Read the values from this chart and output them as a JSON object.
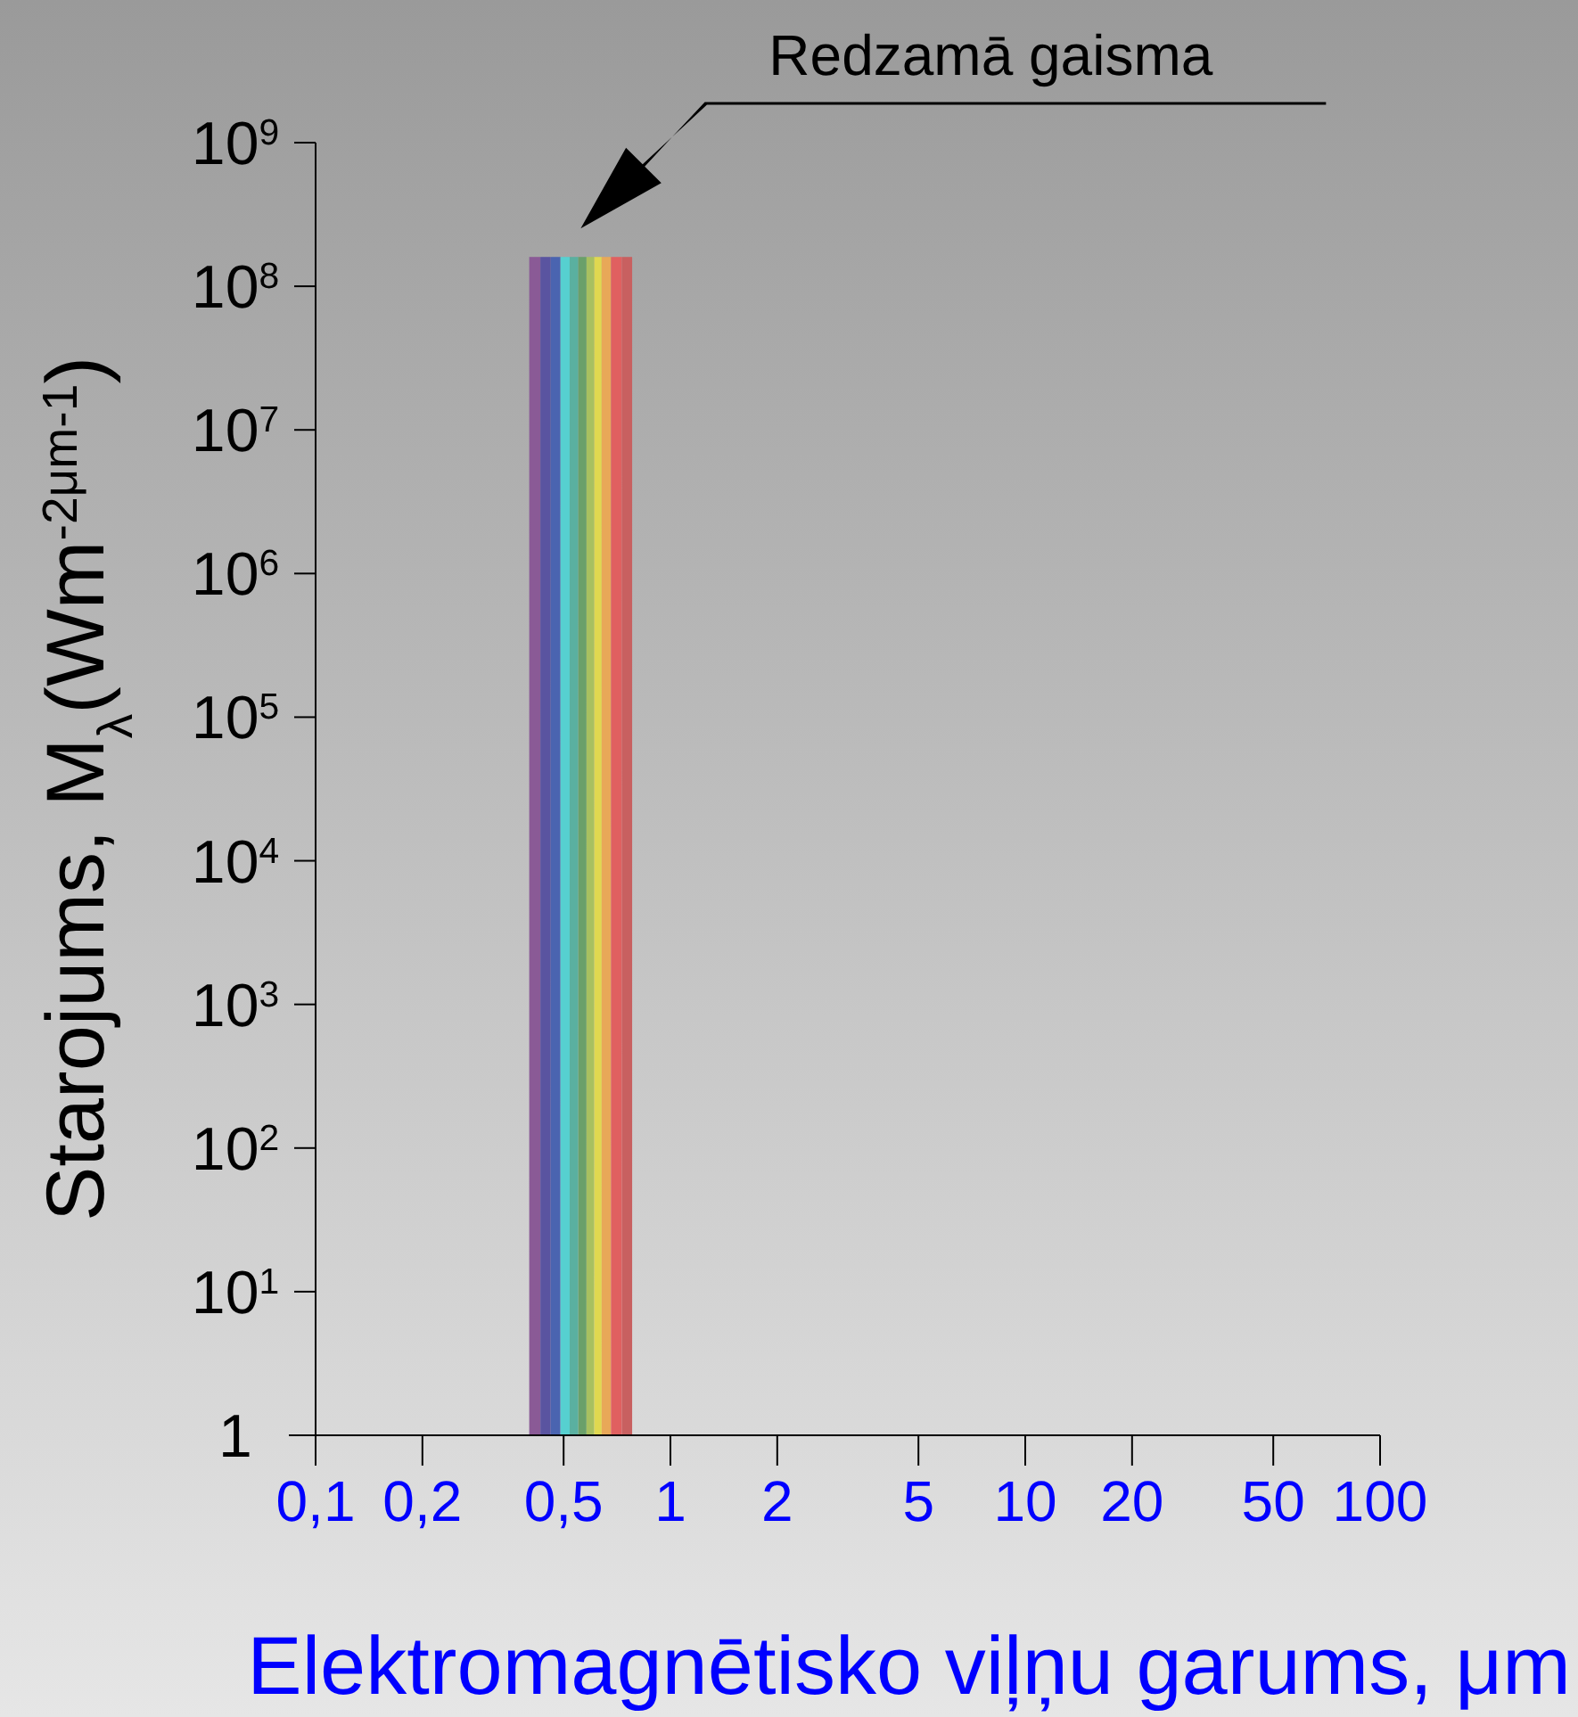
{
  "chart_data": {
    "type": "histogram",
    "ylabel": "Starojums, M$_{λ}$(Wm$^{-2μm-1}$)",
    "xlabel": "Elektromagnētisko viļņu garums, μm",
    "annotations": [
      "Redzamā gaisma"
    ],
    "bins": [
      0.4,
      0.43,
      0.46,
      0.49,
      0.52,
      0.55,
      0.58,
      0.61,
      0.64,
      0.68,
      0.73,
      0.78
    ],
    "values": [
      160000000,
      160000000,
      160000000,
      160000000,
      160000000,
      160000000,
      160000000,
      160000000,
      160000000,
      160000000,
      160000000
    ],
    "colors": [
      "#8a5a96",
      "#5a54a0",
      "#4a64b0",
      "#56d0d0",
      "#5ab0a0",
      "#6aa06a",
      "#a8c060",
      "#e0d850",
      "#e8a858",
      "#e06060",
      "#c86060"
    ],
    "log": "xy",
    "xlim": [
      0.1,
      100
    ],
    "xticks": [
      {
        "value": 0.1,
        "label": "0,1"
      },
      {
        "value": 0.2,
        "label": "0,2"
      },
      {
        "value": 0.5,
        "label": "0,5"
      },
      1,
      2,
      5,
      10,
      20,
      50,
      100
    ],
    "ylim": [
      1,
      1000000000
    ],
    "yticks": [
      1,
      {
        "value": 10,
        "label": "10$^{1}$"
      },
      {
        "value": 100,
        "label": "10$^{2}$"
      },
      {
        "value": 1000,
        "label": "10$^{3}$"
      },
      {
        "value": 10000,
        "label": "10$^{4}$"
      },
      {
        "value": 100000,
        "label": "10$^{5}$"
      },
      {
        "value": 1000000,
        "label": "10$^{6}$"
      },
      {
        "value": 10000000,
        "label": "10$^{7}$"
      },
      {
        "value": 100000000,
        "label": "10$^{8}$"
      },
      {
        "value": 1000000000,
        "label": "10$^{9}$"
      }
    ]
  }
}
